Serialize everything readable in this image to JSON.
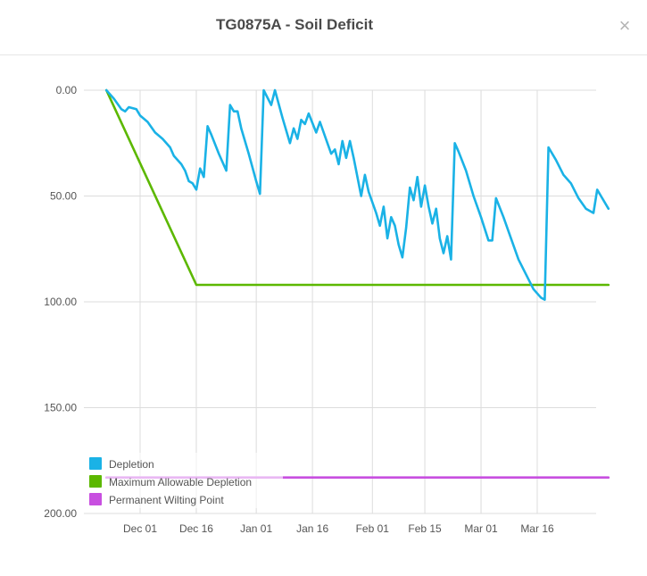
{
  "dialog": {
    "title": "TG0875A - Soil Deficit",
    "close_glyph": "×",
    "close_icon": "close-icon"
  },
  "chart_data": {
    "type": "line",
    "title": "TG0875A - Soil Deficit",
    "y_reversed": true,
    "ylim": [
      0,
      200
    ],
    "y_ticks": [
      0,
      50,
      100,
      150,
      200
    ],
    "y_tick_labels": [
      "0.00",
      "50.00",
      "100.00",
      "150.00",
      "200.00"
    ],
    "xlim": [
      "2023-11-22",
      "2024-03-29"
    ],
    "x_ticks": [
      "2023-12-01",
      "2023-12-16",
      "2024-01-01",
      "2024-01-16",
      "2024-02-01",
      "2024-02-15",
      "2024-03-01",
      "2024-03-16"
    ],
    "x_tick_labels": [
      "Dec 01",
      "Dec 16",
      "Jan 01",
      "Jan 16",
      "Feb 01",
      "Feb 15",
      "Mar 01",
      "Mar 16"
    ],
    "grid": true,
    "legend_position": "bottom-left",
    "series": [
      {
        "name": "Depletion",
        "color": "#1ab2e6",
        "points": [
          [
            "2023-11-22",
            0
          ],
          [
            "2023-11-24",
            4
          ],
          [
            "2023-11-26",
            9
          ],
          [
            "2023-11-27",
            10
          ],
          [
            "2023-11-28",
            8
          ],
          [
            "2023-11-30",
            9
          ],
          [
            "2023-12-01",
            12
          ],
          [
            "2023-12-03",
            15
          ],
          [
            "2023-12-05",
            20
          ],
          [
            "2023-12-07",
            23
          ],
          [
            "2023-12-09",
            27
          ],
          [
            "2023-12-10",
            31
          ],
          [
            "2023-12-12",
            35
          ],
          [
            "2023-12-13",
            38
          ],
          [
            "2023-12-14",
            43
          ],
          [
            "2023-12-15",
            44
          ],
          [
            "2023-12-16",
            47
          ],
          [
            "2023-12-17",
            37
          ],
          [
            "2023-12-18",
            41
          ],
          [
            "2023-12-19",
            17
          ],
          [
            "2023-12-20",
            21
          ],
          [
            "2023-12-22",
            30
          ],
          [
            "2023-12-23",
            34
          ],
          [
            "2023-12-24",
            38
          ],
          [
            "2023-12-25",
            7
          ],
          [
            "2023-12-26",
            10
          ],
          [
            "2023-12-27",
            10
          ],
          [
            "2023-12-28",
            18
          ],
          [
            "2023-12-30",
            30
          ],
          [
            "2024-01-01",
            43
          ],
          [
            "2024-01-02",
            49
          ],
          [
            "2024-01-03",
            0
          ],
          [
            "2024-01-05",
            7
          ],
          [
            "2024-01-06",
            0
          ],
          [
            "2024-01-08",
            13
          ],
          [
            "2024-01-10",
            25
          ],
          [
            "2024-01-11",
            18
          ],
          [
            "2024-01-12",
            23
          ],
          [
            "2024-01-13",
            14
          ],
          [
            "2024-01-14",
            16
          ],
          [
            "2024-01-15",
            11
          ],
          [
            "2024-01-17",
            20
          ],
          [
            "2024-01-18",
            15
          ],
          [
            "2024-01-20",
            25
          ],
          [
            "2024-01-21",
            30
          ],
          [
            "2024-01-22",
            28
          ],
          [
            "2024-01-23",
            35
          ],
          [
            "2024-01-24",
            24
          ],
          [
            "2024-01-25",
            32
          ],
          [
            "2024-01-26",
            24
          ],
          [
            "2024-01-27",
            32
          ],
          [
            "2024-01-29",
            50
          ],
          [
            "2024-01-30",
            40
          ],
          [
            "2024-01-31",
            48
          ],
          [
            "2024-02-02",
            58
          ],
          [
            "2024-02-03",
            64
          ],
          [
            "2024-02-04",
            55
          ],
          [
            "2024-02-05",
            70
          ],
          [
            "2024-02-06",
            60
          ],
          [
            "2024-02-07",
            64
          ],
          [
            "2024-02-08",
            73
          ],
          [
            "2024-02-09",
            79
          ],
          [
            "2024-02-10",
            65
          ],
          [
            "2024-02-11",
            46
          ],
          [
            "2024-02-12",
            52
          ],
          [
            "2024-02-13",
            41
          ],
          [
            "2024-02-14",
            55
          ],
          [
            "2024-02-15",
            45
          ],
          [
            "2024-02-16",
            55
          ],
          [
            "2024-02-17",
            63
          ],
          [
            "2024-02-18",
            56
          ],
          [
            "2024-02-19",
            70
          ],
          [
            "2024-02-20",
            77
          ],
          [
            "2024-02-21",
            69
          ],
          [
            "2024-02-22",
            80
          ],
          [
            "2024-02-23",
            25
          ],
          [
            "2024-02-24",
            29
          ],
          [
            "2024-02-26",
            38
          ],
          [
            "2024-02-28",
            50
          ],
          [
            "2024-03-01",
            60
          ],
          [
            "2024-03-03",
            71
          ],
          [
            "2024-03-04",
            71
          ],
          [
            "2024-03-05",
            51
          ],
          [
            "2024-03-07",
            60
          ],
          [
            "2024-03-09",
            70
          ],
          [
            "2024-03-11",
            80
          ],
          [
            "2024-03-13",
            87
          ],
          [
            "2024-03-15",
            94
          ],
          [
            "2024-03-17",
            98
          ],
          [
            "2024-03-18",
            99
          ],
          [
            "2024-03-19",
            27
          ],
          [
            "2024-03-21",
            33
          ],
          [
            "2024-03-23",
            40
          ],
          [
            "2024-03-25",
            44
          ],
          [
            "2024-03-27",
            51
          ],
          [
            "2024-03-29",
            56
          ],
          [
            "2024-03-31",
            58
          ],
          [
            "2024-04-01",
            47
          ],
          [
            "2024-04-02",
            50
          ],
          [
            "2024-04-04",
            56
          ]
        ]
      },
      {
        "name": "Maximum Allowable Depletion",
        "color": "#5cb800",
        "points": [
          [
            "2023-11-22",
            0
          ],
          [
            "2023-12-16",
            92
          ],
          [
            "2024-04-04",
            92
          ]
        ]
      },
      {
        "name": "Permanent Wilting Point",
        "color": "#c84fe0",
        "points": [
          [
            "2023-11-22",
            183
          ],
          [
            "2024-04-04",
            183
          ]
        ]
      }
    ]
  }
}
